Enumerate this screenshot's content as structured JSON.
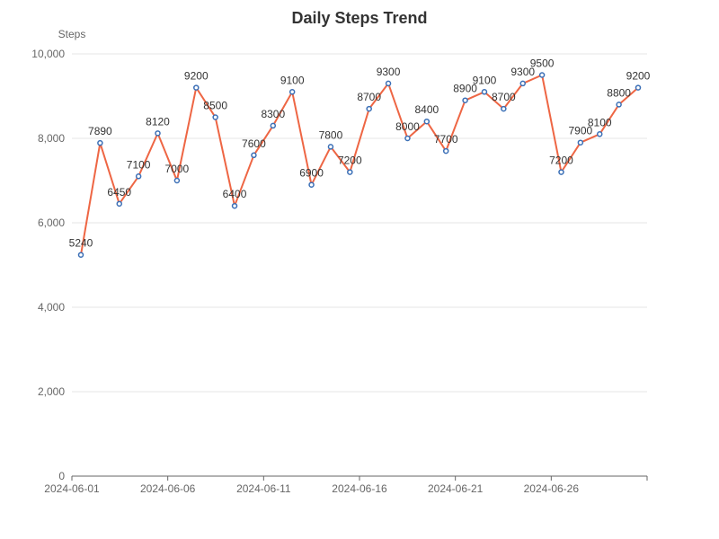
{
  "chart_data": {
    "type": "line",
    "title": "Daily Steps Trend",
    "xlabel": "",
    "ylabel": "Steps",
    "x": [
      "2024-06-01",
      "2024-06-02",
      "2024-06-03",
      "2024-06-04",
      "2024-06-05",
      "2024-06-06",
      "2024-06-07",
      "2024-06-08",
      "2024-06-09",
      "2024-06-10",
      "2024-06-11",
      "2024-06-12",
      "2024-06-13",
      "2024-06-14",
      "2024-06-15",
      "2024-06-16",
      "2024-06-17",
      "2024-06-18",
      "2024-06-19",
      "2024-06-20",
      "2024-06-21",
      "2024-06-22",
      "2024-06-23",
      "2024-06-24",
      "2024-06-25",
      "2024-06-26",
      "2024-06-27",
      "2024-06-28",
      "2024-06-29",
      "2024-06-30"
    ],
    "series": [
      {
        "values": [
          5240,
          7890,
          6450,
          7100,
          8120,
          7000,
          9200,
          8500,
          6400,
          7600,
          8300,
          9100,
          6900,
          7800,
          7200,
          8700,
          9300,
          8000,
          8400,
          7700,
          8900,
          9100,
          8700,
          9300,
          9500,
          7200,
          7900,
          8100,
          8800,
          9200
        ]
      }
    ],
    "x_tick_labels": [
      "2024-06-01",
      "2024-06-06",
      "2024-06-11",
      "2024-06-16",
      "2024-06-21",
      "2024-06-26"
    ],
    "y_tick_labels": [
      "0",
      "2,000",
      "4,000",
      "6,000",
      "8,000",
      "10,000"
    ],
    "ylim": [
      0,
      10000
    ],
    "grid": true,
    "colors": {
      "line": "#ee6644",
      "marker_stroke": "#3b6fb6",
      "marker_fill": "#ffffff",
      "grid": "#e6e6e6",
      "axis": "#666666"
    }
  }
}
